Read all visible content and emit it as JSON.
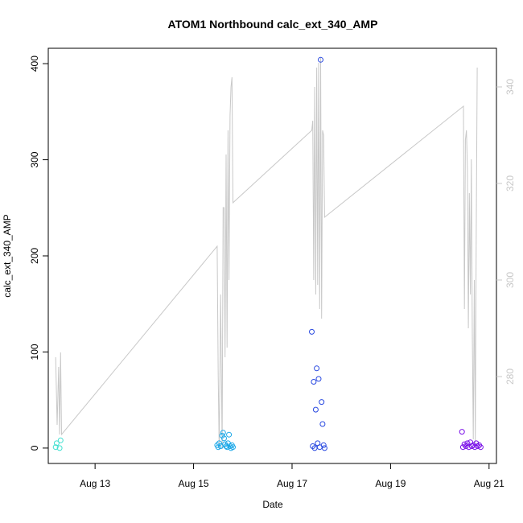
{
  "chart_data": {
    "type": "scatter",
    "title": "ATOM1 Northbound calc_ext_340_AMP",
    "xlabel": "Date",
    "ylabel": "calc_ext_340_AMP",
    "x_tick_labels": [
      "Aug 13",
      "Aug 15",
      "Aug 17",
      "Aug 19",
      "Aug 21"
    ],
    "x_tick_values": [
      13,
      15,
      17,
      19,
      21
    ],
    "xlim": [
      12.05,
      21.15
    ],
    "y_left": {
      "lim": [
        -16,
        416
      ],
      "ticks": [
        0,
        100,
        200,
        300,
        400
      ]
    },
    "y_right": {
      "lim": [
        262,
        348
      ],
      "ticks": [
        280,
        300,
        320,
        340
      ],
      "color": "#c8c8c8"
    },
    "grid": false,
    "legend": "none",
    "scatter_series": [
      {
        "color": "#40e0d0",
        "points": [
          [
            12.2,
            1
          ],
          [
            12.22,
            5
          ],
          [
            12.28,
            0
          ],
          [
            12.3,
            8
          ]
        ]
      },
      {
        "color": "#1ca8e8",
        "points": [
          [
            15.48,
            3
          ],
          [
            15.5,
            1
          ],
          [
            15.52,
            5
          ],
          [
            15.55,
            2
          ],
          [
            15.58,
            13
          ],
          [
            15.6,
            16
          ],
          [
            15.62,
            10
          ],
          [
            15.64,
            4
          ],
          [
            15.66,
            2
          ],
          [
            15.68,
            1
          ],
          [
            15.7,
            5
          ],
          [
            15.72,
            14
          ],
          [
            15.74,
            2
          ],
          [
            15.76,
            0
          ],
          [
            15.78,
            3
          ],
          [
            15.8,
            1
          ]
        ]
      },
      {
        "color": "#2848e0",
        "points": [
          [
            17.4,
            121
          ],
          [
            17.42,
            2
          ],
          [
            17.44,
            69
          ],
          [
            17.46,
            0
          ],
          [
            17.48,
            40
          ],
          [
            17.5,
            83
          ],
          [
            17.52,
            5
          ],
          [
            17.54,
            72
          ],
          [
            17.56,
            1
          ],
          [
            17.58,
            404
          ],
          [
            17.6,
            48
          ],
          [
            17.62,
            25
          ],
          [
            17.64,
            3
          ],
          [
            17.66,
            0
          ]
        ]
      },
      {
        "color": "#7a10e8",
        "points": [
          [
            20.45,
            17
          ],
          [
            20.47,
            1
          ],
          [
            20.5,
            4
          ],
          [
            20.53,
            2
          ],
          [
            20.56,
            5
          ],
          [
            20.59,
            1
          ],
          [
            20.62,
            6
          ],
          [
            20.65,
            2
          ],
          [
            20.68,
            3
          ],
          [
            20.71,
            1
          ],
          [
            20.74,
            5
          ],
          [
            20.77,
            2
          ],
          [
            20.8,
            3
          ],
          [
            20.83,
            1
          ]
        ]
      }
    ],
    "line_series": {
      "axis": "right",
      "color": "#c8c8c8",
      "points": [
        [
          12.2,
          284
        ],
        [
          12.23,
          270
        ],
        [
          12.26,
          282
        ],
        [
          12.28,
          268
        ],
        [
          12.3,
          285
        ],
        [
          12.32,
          268
        ],
        [
          15.48,
          307
        ],
        [
          15.5,
          280
        ],
        [
          15.52,
          265
        ],
        [
          15.55,
          297
        ],
        [
          15.58,
          265
        ],
        [
          15.6,
          315
        ],
        [
          15.62,
          315
        ],
        [
          15.64,
          284
        ],
        [
          15.66,
          326
        ],
        [
          15.68,
          286
        ],
        [
          15.7,
          331
        ],
        [
          15.72,
          300
        ],
        [
          15.74,
          334
        ],
        [
          15.76,
          340
        ],
        [
          15.78,
          342
        ],
        [
          15.8,
          316
        ],
        [
          17.4,
          331
        ],
        [
          17.42,
          333
        ],
        [
          17.44,
          300
        ],
        [
          17.46,
          340
        ],
        [
          17.48,
          297
        ],
        [
          17.5,
          344
        ],
        [
          17.52,
          299
        ],
        [
          17.54,
          345
        ],
        [
          17.56,
          294
        ],
        [
          17.58,
          346
        ],
        [
          17.6,
          292
        ],
        [
          17.62,
          331
        ],
        [
          17.64,
          330
        ],
        [
          17.66,
          313
        ],
        [
          20.48,
          336
        ],
        [
          20.5,
          294
        ],
        [
          20.52,
          329
        ],
        [
          20.54,
          331
        ],
        [
          20.56,
          323
        ],
        [
          20.58,
          290
        ],
        [
          20.6,
          318
        ],
        [
          20.62,
          297
        ],
        [
          20.64,
          325
        ],
        [
          20.66,
          289
        ],
        [
          20.68,
          267
        ],
        [
          20.7,
          300
        ],
        [
          20.72,
          266
        ],
        [
          20.74,
          310
        ],
        [
          20.76,
          344
        ]
      ]
    }
  }
}
